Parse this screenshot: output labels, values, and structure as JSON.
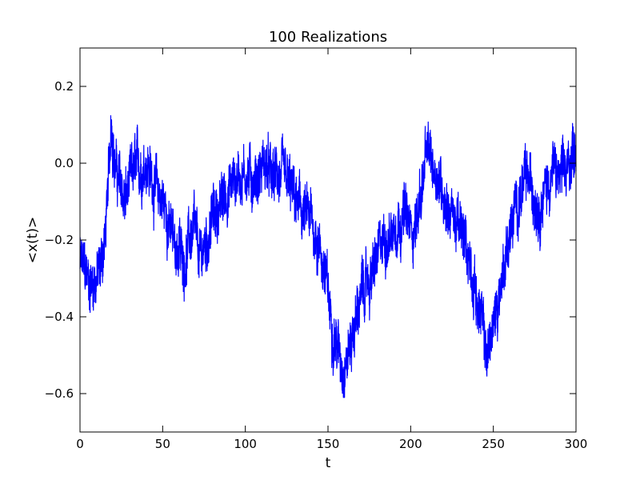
{
  "chart_data": {
    "type": "line",
    "title": "100 Realizations",
    "xlabel": "t",
    "ylabel": "<x(t)>",
    "xlim": [
      0,
      300
    ],
    "ylim": [
      -0.7,
      0.3
    ],
    "x_ticks": [
      0,
      50,
      100,
      150,
      200,
      250,
      300
    ],
    "y_ticks": [
      -0.6,
      -0.4,
      -0.2,
      0.0,
      0.2
    ],
    "x_tick_labels": [
      "0",
      "50",
      "100",
      "150",
      "200",
      "250",
      "300"
    ],
    "y_tick_labels": [
      "−0.6",
      "−0.4",
      "−0.2",
      "0.0",
      "0.2"
    ],
    "grid": false,
    "series_color": "#0000ff",
    "noise_amplitude": 0.07,
    "series": [
      {
        "x": [
          0,
          3,
          6,
          9,
          12,
          15,
          17,
          19,
          21,
          24,
          27,
          30,
          33,
          36,
          40,
          43,
          46,
          50,
          53,
          56,
          60,
          63,
          66,
          69,
          72,
          75,
          78,
          80,
          84,
          88,
          92,
          96,
          100,
          104,
          108,
          112,
          116,
          120,
          124,
          128,
          132,
          136,
          140,
          144,
          148,
          151,
          154,
          157,
          160,
          163,
          166,
          169,
          173,
          176,
          180,
          184,
          188,
          192,
          196,
          200,
          204,
          207,
          210,
          213,
          216,
          220,
          224,
          228,
          232,
          236,
          240,
          243,
          246,
          249,
          252,
          255,
          258,
          262,
          266,
          270,
          274,
          278,
          282,
          286,
          290,
          294,
          297,
          300
        ],
        "values": [
          -0.26,
          -0.29,
          -0.31,
          -0.3,
          -0.28,
          -0.2,
          -0.08,
          0.13,
          0.0,
          -0.06,
          -0.1,
          -0.06,
          -0.02,
          -0.02,
          0.02,
          -0.03,
          -0.07,
          -0.1,
          -0.14,
          -0.2,
          -0.23,
          -0.25,
          -0.2,
          -0.18,
          -0.26,
          -0.22,
          -0.18,
          -0.14,
          -0.12,
          -0.08,
          -0.05,
          -0.03,
          -0.02,
          -0.04,
          -0.03,
          0.0,
          -0.05,
          -0.03,
          -0.06,
          -0.08,
          -0.12,
          -0.14,
          -0.16,
          -0.2,
          -0.28,
          -0.38,
          -0.44,
          -0.5,
          -0.52,
          -0.48,
          -0.42,
          -0.36,
          -0.32,
          -0.3,
          -0.25,
          -0.2,
          -0.18,
          -0.14,
          -0.13,
          -0.18,
          -0.14,
          -0.05,
          0.02,
          0.0,
          -0.02,
          -0.08,
          -0.12,
          -0.16,
          -0.2,
          -0.25,
          -0.35,
          -0.42,
          -0.5,
          -0.45,
          -0.38,
          -0.3,
          -0.22,
          -0.15,
          -0.08,
          -0.05,
          -0.07,
          -0.1,
          -0.06,
          -0.02,
          -0.04,
          -0.04,
          0.02,
          0.06
        ]
      }
    ]
  }
}
